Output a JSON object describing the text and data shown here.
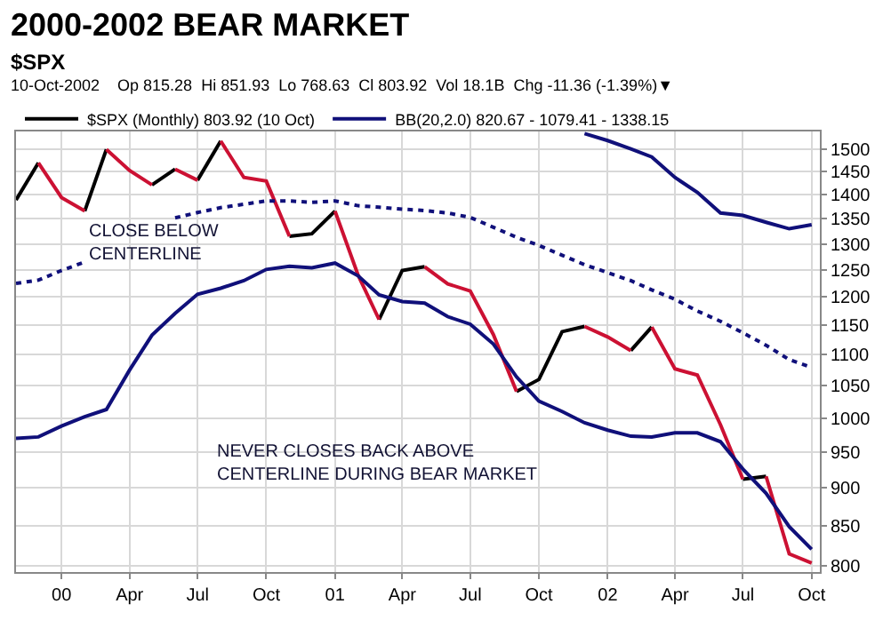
{
  "chart_data": {
    "type": "line",
    "title": "2000-2002 BEAR MARKET",
    "subtitle": "$SPX",
    "annotations": [
      "10-Oct-2002    Op 815.28  Hi 851.93  Lo 768.63  Cl 803.92  Vol 18.1B  Chg -11.36 (-1.39%)▼",
      "CLOSE BELOW\nCENTERLINE",
      "NEVER CLOSES BACK ABOVE\nCENTERLINE DURING BEAR MARKET"
    ],
    "x": [
      "1999-11",
      "1999-12",
      "2000-01",
      "2000-02",
      "2000-03",
      "2000-04",
      "2000-05",
      "2000-06",
      "2000-07",
      "2000-08",
      "2000-09",
      "2000-10",
      "2000-11",
      "2000-12",
      "2001-01",
      "2001-02",
      "2001-03",
      "2001-04",
      "2001-05",
      "2001-06",
      "2001-07",
      "2001-08",
      "2001-09",
      "2001-10",
      "2001-11",
      "2001-12",
      "2002-01",
      "2002-02",
      "2002-03",
      "2002-04",
      "2002-05",
      "2002-06",
      "2002-07",
      "2002-08",
      "2002-09",
      "2002-10"
    ],
    "series": [
      {
        "name": "$SPX (Monthly) 803.92 (10 Oct)",
        "color": "#000000",
        "x": [
          "1999-11",
          "1999-12",
          null,
          "2000-02",
          "2000-03",
          null,
          "2000-05",
          "2000-06",
          null,
          "2000-07",
          "2000-08",
          null,
          "2000-11",
          "2000-12",
          "2001-01",
          null,
          "2001-03",
          "2001-04",
          "2001-05",
          null,
          "2001-09",
          "2001-10",
          "2001-11",
          "2001-12",
          null,
          "2002-02",
          "2002-03",
          null,
          "2002-07",
          "2002-08"
        ],
        "values": [
          1389,
          1469,
          null,
          1366,
          1499,
          null,
          1421,
          1455,
          null,
          1431,
          1518,
          null,
          1315,
          1320,
          1366,
          null,
          1160,
          1249,
          1256,
          null,
          1041,
          1060,
          1139,
          1148,
          null,
          1107,
          1147,
          null,
          912,
          916
        ]
      },
      {
        "color": "#cc1133",
        "x": [
          "1999-12",
          "2000-01",
          "2000-02",
          null,
          "2000-03",
          "2000-04",
          "2000-05",
          null,
          "2000-06",
          "2000-07",
          null,
          "2000-08",
          "2000-09",
          "2000-10",
          "2000-11",
          null,
          "2001-01",
          "2001-02",
          "2001-03",
          null,
          "2001-05",
          "2001-06",
          "2001-07",
          "2001-08",
          "2001-09",
          null,
          "2001-12",
          "2002-01",
          "2002-02",
          null,
          "2002-03",
          "2002-04",
          "2002-05",
          "2002-06",
          "2002-07",
          null,
          "2002-08",
          "2002-09",
          "2002-10"
        ],
        "values": [
          1469,
          1394,
          1366,
          null,
          1499,
          1452,
          1421,
          null,
          1455,
          1431,
          null,
          1518,
          1437,
          1429,
          1315,
          null,
          1366,
          1240,
          1160,
          null,
          1256,
          1224,
          1211,
          1134,
          1041,
          null,
          1148,
          1130,
          1107,
          null,
          1147,
          1077,
          1067,
          990,
          912,
          null,
          916,
          815,
          803.92
        ]
      },
      {
        "name": "BB(20,2.0) 820.67 - 1079.41 - 1338.15",
        "color": "#10107a",
        "values": [
          null,
          null,
          null,
          null,
          null,
          null,
          null,
          null,
          null,
          null,
          null,
          null,
          null,
          null,
          null,
          null,
          null,
          null,
          null,
          null,
          null,
          null,
          null,
          null,
          null,
          1535,
          1519,
          1500,
          1482,
          1437,
          1405,
          1362,
          1357,
          1343,
          1330,
          1338.15
        ]
      },
      {
        "color": "#10107a",
        "line_style": "dotted",
        "values": [
          1225,
          1231,
          1249,
          1265,
          null,
          null,
          null,
          1352,
          1363,
          1373,
          1380,
          1387,
          1387,
          1384,
          1387,
          1377,
          1374,
          1370,
          1367,
          1362,
          1353,
          1333,
          1313,
          1297,
          1278,
          1260,
          1245,
          1230,
          1213,
          1196,
          1175,
          1157,
          1137,
          1116,
          1092,
          1079.41
        ]
      },
      {
        "color": "#10107a",
        "values": [
          970,
          972,
          988,
          1002,
          1013,
          1075,
          1133,
          1171,
          1205,
          1216,
          1230,
          1251,
          1257,
          1254,
          1263,
          1239,
          1204,
          1192,
          1189,
          1165,
          1152,
          1118,
          1064,
          1026,
          1010,
          993,
          982,
          973,
          972,
          978,
          978,
          965,
          926,
          893,
          849,
          820.67
        ]
      }
    ],
    "xlim": [
      "1999-11-01",
      "2002-10-12"
    ],
    "xticks": [
      {
        "value": "2000-01",
        "label": "00"
      },
      {
        "value": "2000-04",
        "label": "Apr"
      },
      {
        "value": "2000-07",
        "label": "Jul"
      },
      {
        "value": "2000-10",
        "label": "Oct"
      },
      {
        "value": "2001-01",
        "label": "01"
      },
      {
        "value": "2001-04",
        "label": "Apr"
      },
      {
        "value": "2001-07",
        "label": "Jul"
      },
      {
        "value": "2001-10",
        "label": "Oct"
      },
      {
        "value": "2002-01",
        "label": "02"
      },
      {
        "value": "2002-04",
        "label": "Apr"
      },
      {
        "value": "2002-07",
        "label": "Jul"
      },
      {
        "value": "2002-10",
        "label": "Oct"
      }
    ],
    "ylim": [
      793,
      1540
    ],
    "yticks": [
      800,
      850,
      900,
      950,
      1000,
      1050,
      1100,
      1150,
      1200,
      1250,
      1300,
      1350,
      1400,
      1450,
      1500
    ],
    "log": "y",
    "grid": true,
    "legend": "top left",
    "line_style": "solid",
    "marker": "none"
  }
}
